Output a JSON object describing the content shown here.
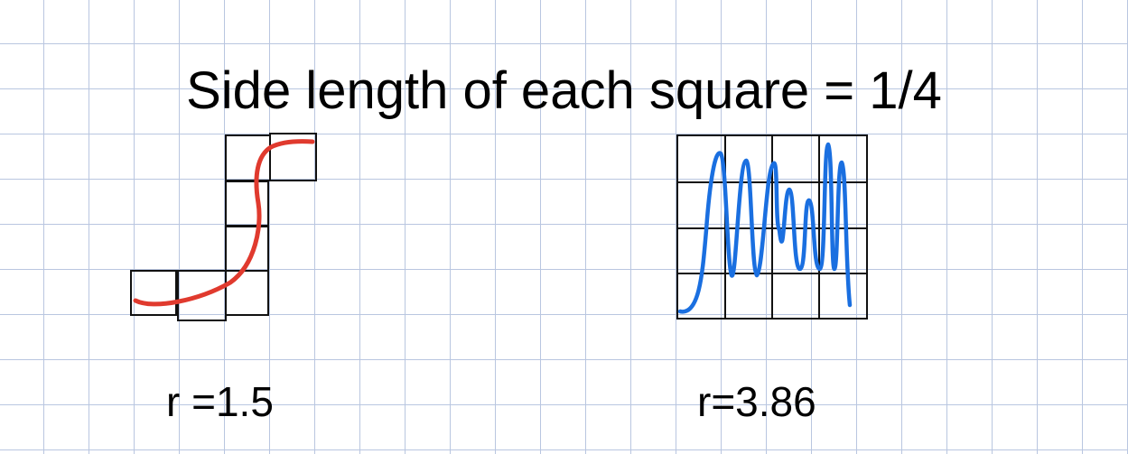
{
  "title": "Side length of each square = 1/4",
  "left_figure": {
    "label": "r =1.5",
    "curve_color": "#e03a2e"
  },
  "right_figure": {
    "label": "r=3.86",
    "curve_color": "#1a6fe0"
  }
}
